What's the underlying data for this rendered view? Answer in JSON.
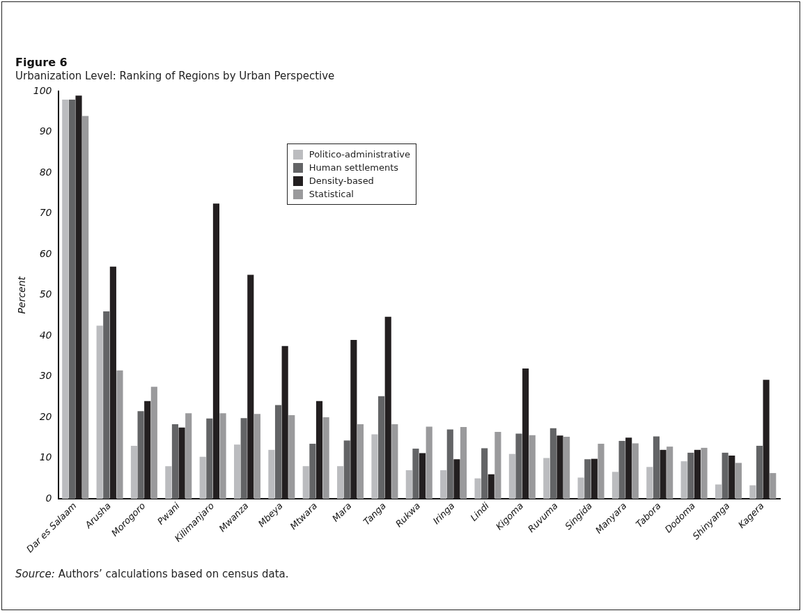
{
  "chart_data": {
    "type": "bar",
    "title": "Figure 6",
    "subtitle": "Urbanization Level: Ranking of Regions by Urban Perspective",
    "ylabel": "Percent",
    "categories": [
      "Dar es Salaam",
      "Arusha",
      "Morogoro",
      "Pwani",
      "Kilimanjaro",
      "Mwanza",
      "Mbeya",
      "Mtwara",
      "Mara",
      "Tanga",
      "Rukwa",
      "Iringa",
      "Lindi",
      "Kigoma",
      "Ruvuma",
      "Singida",
      "Manyara",
      "Tabora",
      "Dodoma",
      "Shinyanga",
      "Kagera"
    ],
    "series": [
      {
        "name": "Politico-administrative",
        "color": "#bbbcbf",
        "values": [
          98,
          42.5,
          13,
          8,
          10.3,
          13.3,
          12,
          8,
          8,
          15.8,
          7,
          7,
          5,
          11,
          10,
          5.2,
          6.6,
          7.8,
          9.2,
          3.5,
          3.3
        ]
      },
      {
        "name": "Human settlements",
        "color": "#636466",
        "values": [
          98,
          46,
          21.5,
          18.3,
          19.7,
          19.8,
          23,
          13.5,
          14.3,
          25.2,
          12.3,
          17,
          12.4,
          16,
          17.3,
          9.7,
          14.2,
          15.3,
          11.3,
          11.3,
          13
        ]
      },
      {
        "name": "Density-based",
        "color": "#231f20",
        "values": [
          99,
          57,
          24,
          17.5,
          72.5,
          55,
          37.5,
          24,
          39,
          44.7,
          11.2,
          9.7,
          6,
          32,
          15.5,
          9.8,
          15,
          12,
          12,
          10.6,
          29.2
        ]
      },
      {
        "name": "Statistical",
        "color": "#9a9a9c",
        "values": [
          94,
          31.5,
          27.5,
          21,
          21,
          20.8,
          20.5,
          20,
          18.3,
          18.3,
          17.7,
          17.6,
          16.4,
          15.6,
          15.2,
          13.5,
          13.6,
          12.8,
          12.5,
          8.8,
          6.3
        ]
      }
    ],
    "ylim": [
      0,
      100
    ],
    "yticks": [
      0,
      10,
      20,
      30,
      40,
      50,
      60,
      70,
      80,
      90,
      100
    ],
    "grid": false,
    "legend": "top",
    "annotations": [
      "Source: Authors’ calculations based on census data."
    ]
  }
}
